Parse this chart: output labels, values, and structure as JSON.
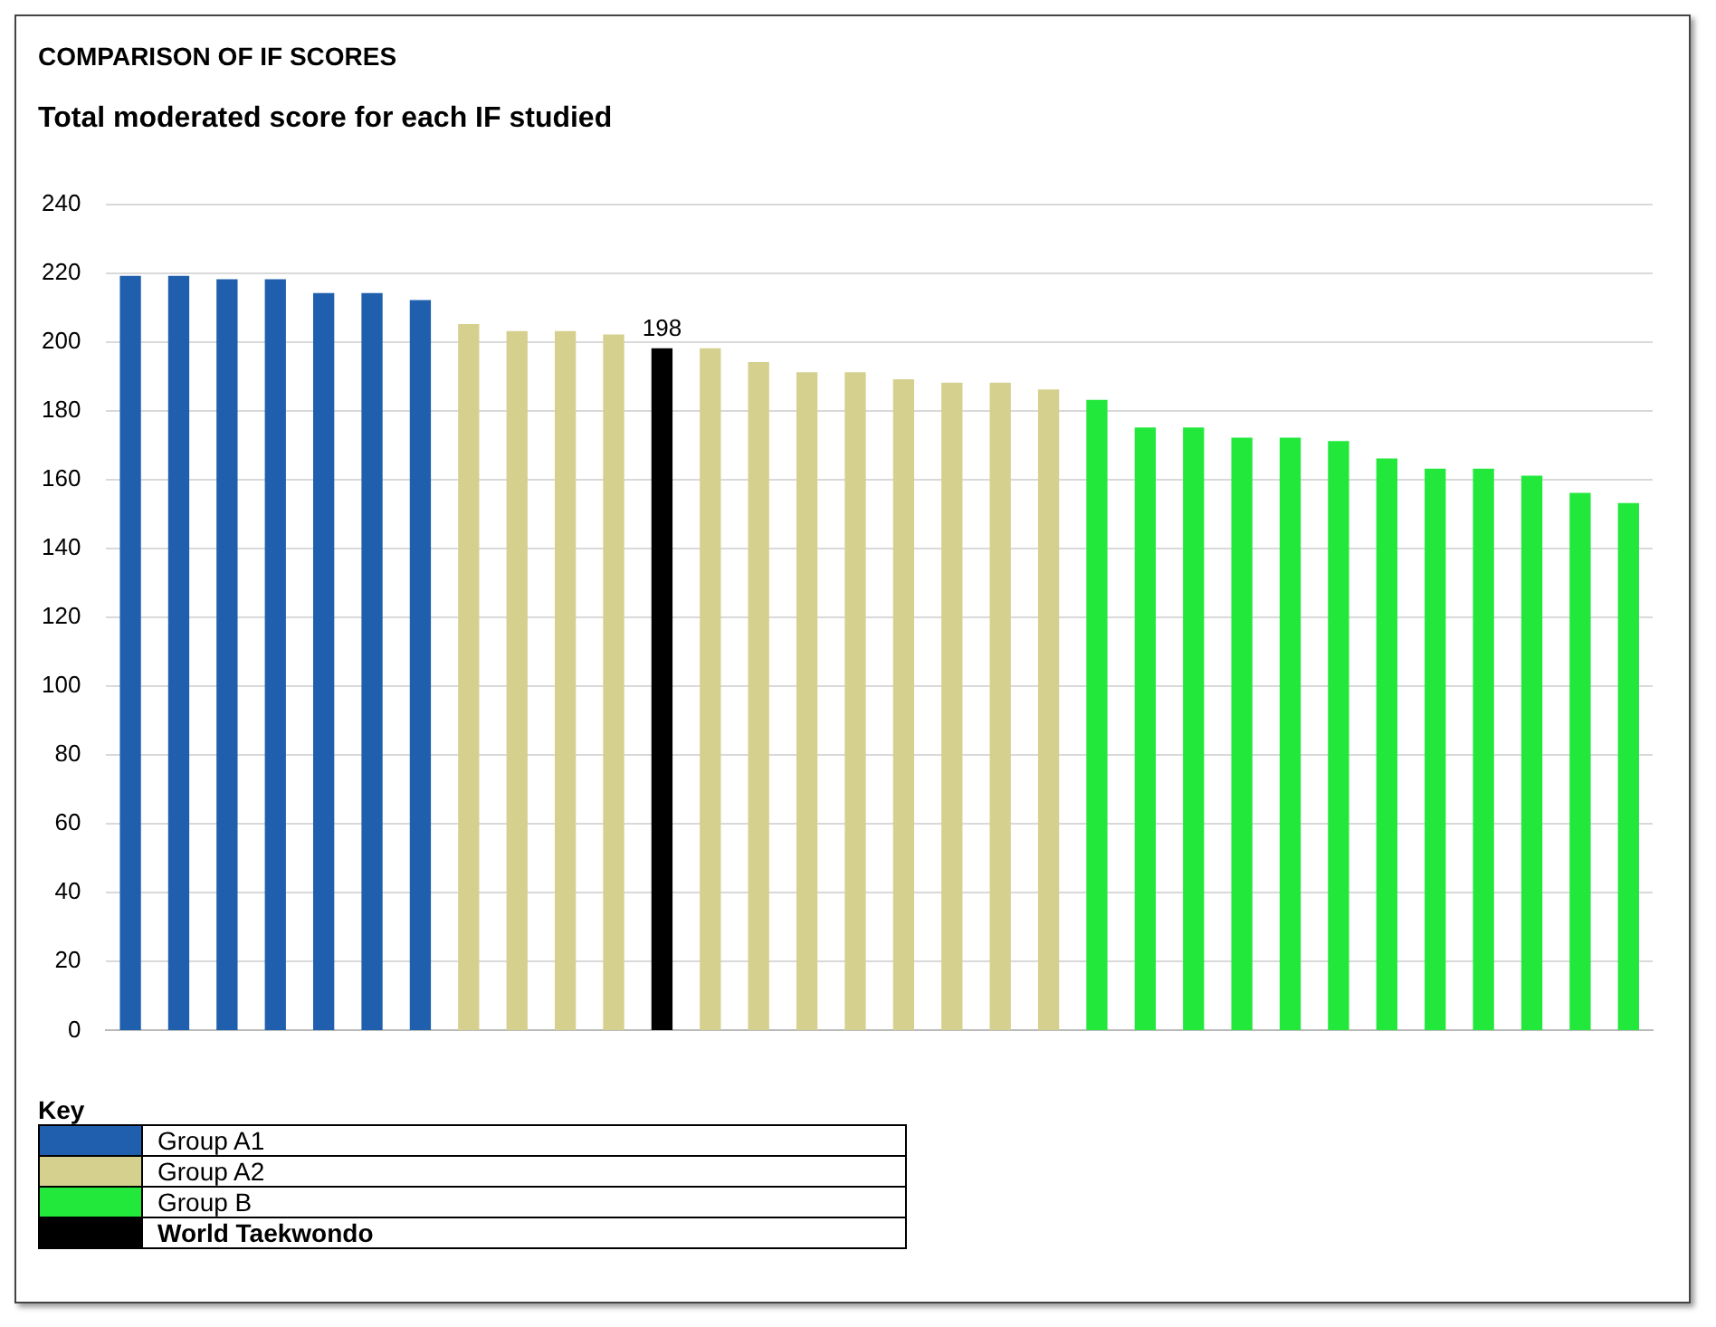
{
  "chart_data": {
    "type": "bar",
    "title": "COMPARISON OF IF SCORES",
    "subtitle": "Total moderated score for each IF studied",
    "categories": [
      null,
      null,
      null,
      null,
      null,
      null,
      null,
      null,
      null,
      null,
      null,
      null,
      null,
      null,
      null,
      null,
      null,
      null,
      null,
      null,
      null,
      null,
      null,
      null,
      null,
      null,
      null,
      null,
      null,
      null,
      null,
      null
    ],
    "series": [
      {
        "name": "Group A1",
        "color": "#1f5fad",
        "values": [
          219,
          219,
          218,
          218,
          214,
          214,
          212,
          null,
          null,
          null,
          null,
          null,
          null,
          null,
          null,
          null,
          null,
          null,
          null,
          null,
          null,
          null,
          null,
          null,
          null,
          null,
          null,
          null,
          null,
          null,
          null,
          null
        ]
      },
      {
        "name": "Group A2",
        "color": "#d6d08e",
        "values": [
          null,
          null,
          null,
          null,
          null,
          null,
          null,
          205,
          203,
          203,
          202,
          null,
          198,
          194,
          191,
          191,
          189,
          188,
          188,
          186,
          null,
          null,
          null,
          null,
          null,
          null,
          null,
          null,
          null,
          null,
          null,
          null
        ]
      },
      {
        "name": "Group B",
        "color": "#22e83c",
        "values": [
          null,
          null,
          null,
          null,
          null,
          null,
          null,
          null,
          null,
          null,
          null,
          null,
          null,
          null,
          null,
          null,
          null,
          null,
          null,
          null,
          183,
          175,
          175,
          172,
          172,
          171,
          166,
          163,
          163,
          161,
          156,
          153
        ]
      },
      {
        "name": "World Taekwondo",
        "color": "#000000",
        "values": [
          null,
          null,
          null,
          null,
          null,
          null,
          null,
          null,
          null,
          null,
          null,
          198,
          null,
          null,
          null,
          null,
          null,
          null,
          null,
          null,
          null,
          null,
          null,
          null,
          null,
          null,
          null,
          null,
          null,
          null,
          null,
          null
        ],
        "value_labels": [
          null,
          null,
          null,
          null,
          null,
          null,
          null,
          null,
          null,
          null,
          null,
          "198",
          null,
          null,
          null,
          null,
          null,
          null,
          null,
          null,
          null,
          null,
          null,
          null,
          null,
          null,
          null,
          null,
          null,
          null,
          null,
          null
        ]
      }
    ],
    "legend_title": "Key",
    "legend": "bottom left",
    "ylim": [
      0,
      240
    ],
    "yticks": [
      0,
      20,
      40,
      60,
      80,
      100,
      120,
      140,
      160,
      180,
      200,
      220,
      240
    ],
    "grid": "y"
  }
}
